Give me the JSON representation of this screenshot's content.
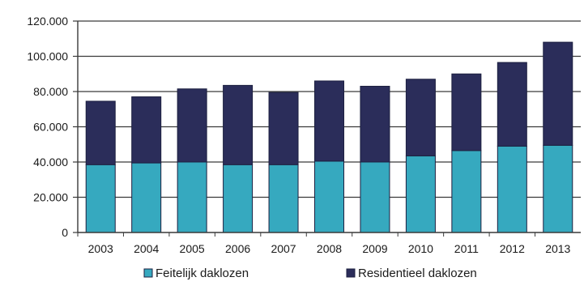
{
  "chart_data": {
    "type": "bar",
    "stacked": true,
    "categories": [
      "2003",
      "2004",
      "2005",
      "2006",
      "2007",
      "2008",
      "2009",
      "2010",
      "2011",
      "2012",
      "2013"
    ],
    "series": [
      {
        "name": "Feitelijk daklozen",
        "color": "#36a9bf",
        "values": [
          38500,
          39500,
          40000,
          38500,
          38500,
          40500,
          40000,
          43500,
          46500,
          49000,
          49500
        ]
      },
      {
        "name": "Residentieel daklozen",
        "color": "#2b2d5a",
        "values": [
          36000,
          37500,
          41500,
          45000,
          41000,
          45500,
          43000,
          43500,
          43500,
          47500,
          58500
        ]
      }
    ],
    "ylim": [
      0,
      120000
    ],
    "yticks": [
      0,
      20000,
      40000,
      60000,
      80000,
      100000,
      120000
    ],
    "ytick_labels": [
      "0",
      "20.000",
      "40.000",
      "60.000",
      "80.000",
      "100.000",
      "120.000"
    ],
    "grid": true,
    "legend_position": "bottom",
    "title": "",
    "xlabel": "",
    "ylabel": ""
  }
}
